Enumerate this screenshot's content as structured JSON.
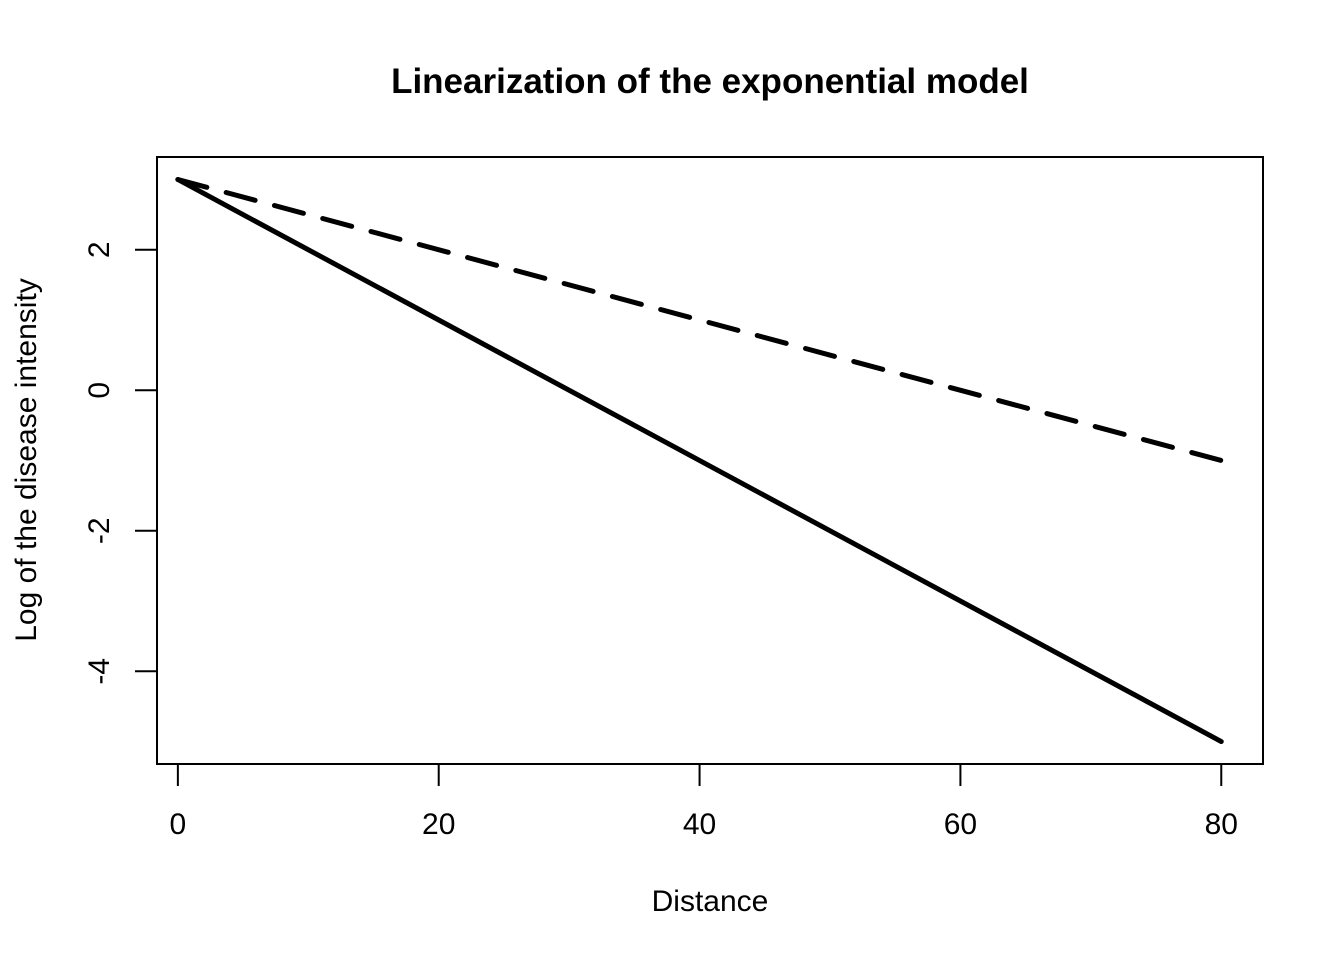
{
  "chart_data": {
    "type": "line",
    "title": "Linearization of the exponential model",
    "xlabel": "Distance",
    "ylabel": "Log of the disease intensity",
    "xlim": [
      -1.6,
      83.2
    ],
    "ylim": [
      -5.32,
      3.32
    ],
    "x_ticks": [
      0,
      20,
      40,
      60,
      80
    ],
    "y_ticks": [
      -4,
      -2,
      0,
      2
    ],
    "grid": false,
    "legend": "none",
    "series": [
      {
        "style": "solid",
        "color": "#000000",
        "x": [
          0,
          80
        ],
        "y": [
          3,
          -5
        ]
      },
      {
        "style": "dashed",
        "color": "#000000",
        "x": [
          0,
          80
        ],
        "y": [
          3,
          -1
        ]
      }
    ]
  }
}
